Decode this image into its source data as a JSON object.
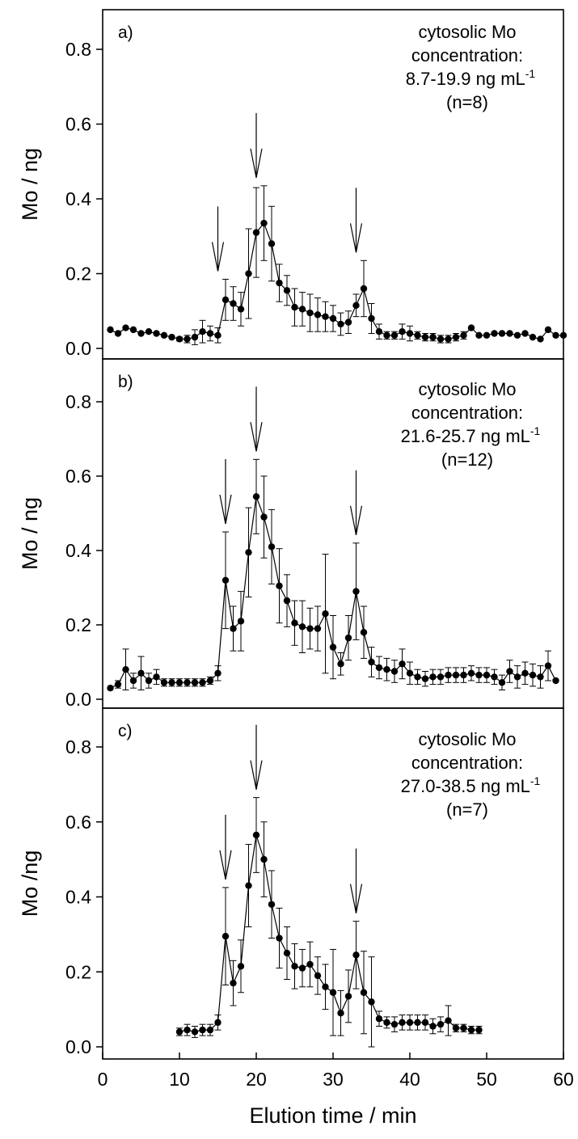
{
  "chart_data": {
    "type": "line",
    "xlabel": "Elution time / min",
    "xlim": [
      0,
      60
    ],
    "xticks": [
      "0",
      "10",
      "20",
      "30",
      "40",
      "50",
      "60"
    ],
    "panels": [
      {
        "label": "a)",
        "ylabel": "Mo / ng",
        "ylim": [
          0,
          0.9
        ],
        "yticks": [
          "0.0",
          "0.2",
          "0.4",
          "0.6",
          "0.8"
        ],
        "annotation": [
          "cytosolic Mo",
          "concentration:",
          "8.7-19.9 ng mL",
          "(n=8)"
        ],
        "annotation_sup": "-1",
        "arrows_x": [
          15,
          20,
          33
        ],
        "points": [
          [
            1,
            0.05,
            0
          ],
          [
            2,
            0.04,
            0
          ],
          [
            3,
            0.055,
            0
          ],
          [
            4,
            0.05,
            0
          ],
          [
            5,
            0.04,
            0
          ],
          [
            6,
            0.045,
            0
          ],
          [
            7,
            0.04,
            0
          ],
          [
            8,
            0.035,
            0
          ],
          [
            9,
            0.03,
            0
          ],
          [
            10,
            0.025,
            0.005
          ],
          [
            11,
            0.025,
            0.01
          ],
          [
            12,
            0.03,
            0.02
          ],
          [
            13,
            0.045,
            0.03
          ],
          [
            14,
            0.04,
            0.02
          ],
          [
            15,
            0.035,
            0.02
          ],
          [
            16,
            0.13,
            0.055
          ],
          [
            17,
            0.12,
            0.045
          ],
          [
            18,
            0.105,
            0.045
          ],
          [
            19,
            0.2,
            0.12
          ],
          [
            20,
            0.31,
            0.12
          ],
          [
            21,
            0.335,
            0.1
          ],
          [
            22,
            0.28,
            0.1
          ],
          [
            23,
            0.175,
            0.05
          ],
          [
            24,
            0.155,
            0.04
          ],
          [
            25,
            0.11,
            0.05
          ],
          [
            26,
            0.105,
            0.045
          ],
          [
            27,
            0.095,
            0.05
          ],
          [
            28,
            0.09,
            0.045
          ],
          [
            29,
            0.085,
            0.04
          ],
          [
            30,
            0.08,
            0.035
          ],
          [
            31,
            0.065,
            0.03
          ],
          [
            32,
            0.07,
            0.03
          ],
          [
            33,
            0.115,
            0.03
          ],
          [
            34,
            0.16,
            0.075
          ],
          [
            35,
            0.08,
            0.04
          ],
          [
            36,
            0.045,
            0.02
          ],
          [
            37,
            0.035,
            0.01
          ],
          [
            38,
            0.035,
            0.01
          ],
          [
            39,
            0.045,
            0.02
          ],
          [
            40,
            0.04,
            0.02
          ],
          [
            41,
            0.035,
            0.01
          ],
          [
            42,
            0.03,
            0.01
          ],
          [
            43,
            0.03,
            0.01
          ],
          [
            44,
            0.025,
            0.01
          ],
          [
            45,
            0.025,
            0.01
          ],
          [
            46,
            0.03,
            0.01
          ],
          [
            47,
            0.035,
            0.01
          ],
          [
            48,
            0.055,
            0
          ],
          [
            49,
            0.035,
            0
          ],
          [
            50,
            0.035,
            0
          ],
          [
            51,
            0.04,
            0
          ],
          [
            52,
            0.04,
            0
          ],
          [
            53,
            0.04,
            0
          ],
          [
            54,
            0.035,
            0
          ],
          [
            55,
            0.04,
            0
          ],
          [
            56,
            0.03,
            0
          ],
          [
            57,
            0.025,
            0
          ],
          [
            58,
            0.05,
            0
          ],
          [
            59,
            0.035,
            0
          ],
          [
            60,
            0.035,
            0
          ]
        ]
      },
      {
        "label": "b)",
        "ylabel": "Mo / ng",
        "ylim": [
          0,
          0.9
        ],
        "yticks": [
          "0.0",
          "0.2",
          "0.4",
          "0.6",
          "0.8"
        ],
        "annotation": [
          "cytosolic Mo",
          "concentration:",
          "21.6-25.7 ng mL",
          "(n=12)"
        ],
        "annotation_sup": "-1",
        "arrows_x": [
          16,
          20,
          33
        ],
        "points": [
          [
            1,
            0.03,
            0
          ],
          [
            2,
            0.04,
            0.01
          ],
          [
            3,
            0.08,
            0.055
          ],
          [
            4,
            0.05,
            0.02
          ],
          [
            5,
            0.07,
            0.045
          ],
          [
            6,
            0.05,
            0.02
          ],
          [
            7,
            0.06,
            0.02
          ],
          [
            8,
            0.045,
            0.01
          ],
          [
            9,
            0.045,
            0.01
          ],
          [
            10,
            0.045,
            0.01
          ],
          [
            11,
            0.045,
            0.01
          ],
          [
            12,
            0.045,
            0.01
          ],
          [
            13,
            0.045,
            0.01
          ],
          [
            14,
            0.05,
            0.01
          ],
          [
            15,
            0.07,
            0.02
          ],
          [
            16,
            0.32,
            0.13
          ],
          [
            17,
            0.19,
            0.06
          ],
          [
            18,
            0.21,
            0.08
          ],
          [
            19,
            0.395,
            0.12
          ],
          [
            20,
            0.545,
            0.1
          ],
          [
            21,
            0.49,
            0.11
          ],
          [
            22,
            0.41,
            0.1
          ],
          [
            23,
            0.305,
            0.1
          ],
          [
            24,
            0.265,
            0.07
          ],
          [
            25,
            0.205,
            0.06
          ],
          [
            26,
            0.195,
            0.07
          ],
          [
            27,
            0.19,
            0.055
          ],
          [
            28,
            0.19,
            0.06
          ],
          [
            29,
            0.23,
            0.16
          ],
          [
            30,
            0.14,
            0.085
          ],
          [
            31,
            0.095,
            0.03
          ],
          [
            32,
            0.165,
            0.06
          ],
          [
            33,
            0.29,
            0.13
          ],
          [
            34,
            0.18,
            0.07
          ],
          [
            35,
            0.1,
            0.04
          ],
          [
            36,
            0.085,
            0.03
          ],
          [
            37,
            0.08,
            0.03
          ],
          [
            38,
            0.075,
            0.03
          ],
          [
            39,
            0.095,
            0.04
          ],
          [
            40,
            0.07,
            0.03
          ],
          [
            41,
            0.06,
            0.02
          ],
          [
            42,
            0.055,
            0.02
          ],
          [
            43,
            0.06,
            0.02
          ],
          [
            44,
            0.06,
            0.02
          ],
          [
            45,
            0.065,
            0.02
          ],
          [
            46,
            0.065,
            0.02
          ],
          [
            47,
            0.065,
            0.02
          ],
          [
            48,
            0.07,
            0.02
          ],
          [
            49,
            0.065,
            0.02
          ],
          [
            50,
            0.065,
            0.02
          ],
          [
            51,
            0.06,
            0.02
          ],
          [
            52,
            0.045,
            0.02
          ],
          [
            53,
            0.075,
            0.03
          ],
          [
            54,
            0.06,
            0.03
          ],
          [
            55,
            0.07,
            0.03
          ],
          [
            56,
            0.065,
            0.03
          ],
          [
            57,
            0.06,
            0.03
          ],
          [
            58,
            0.09,
            0.04
          ],
          [
            59,
            0.05,
            0
          ]
        ]
      },
      {
        "label": "c)",
        "ylabel": "Mo /ng",
        "ylim": [
          0,
          0.9
        ],
        "yticks": [
          "0.0",
          "0.2",
          "0.4",
          "0.6",
          "0.8"
        ],
        "annotation": [
          "cytosolic Mo",
          "concentration:",
          "27.0-38.5 ng mL",
          "(n=7)"
        ],
        "annotation_sup": "-1",
        "arrows_x": [
          16,
          20,
          33
        ],
        "points": [
          [
            10,
            0.04,
            0.01
          ],
          [
            11,
            0.045,
            0.015
          ],
          [
            12,
            0.04,
            0.015
          ],
          [
            13,
            0.045,
            0.015
          ],
          [
            14,
            0.045,
            0.015
          ],
          [
            15,
            0.065,
            0.02
          ],
          [
            16,
            0.295,
            0.13
          ],
          [
            17,
            0.17,
            0.06
          ],
          [
            18,
            0.215,
            0.07
          ],
          [
            19,
            0.43,
            0.11
          ],
          [
            20,
            0.565,
            0.1
          ],
          [
            21,
            0.5,
            0.1
          ],
          [
            22,
            0.38,
            0.09
          ],
          [
            23,
            0.29,
            0.08
          ],
          [
            24,
            0.25,
            0.07
          ],
          [
            25,
            0.215,
            0.06
          ],
          [
            26,
            0.21,
            0.05
          ],
          [
            27,
            0.22,
            0.06
          ],
          [
            28,
            0.19,
            0.05
          ],
          [
            29,
            0.16,
            0.06
          ],
          [
            30,
            0.145,
            0.115
          ],
          [
            31,
            0.09,
            0.06
          ],
          [
            32,
            0.135,
            0.07
          ],
          [
            33,
            0.245,
            0.09
          ],
          [
            34,
            0.145,
            0.11
          ],
          [
            35,
            0.12,
            0.12
          ],
          [
            36,
            0.075,
            0.02
          ],
          [
            37,
            0.065,
            0.015
          ],
          [
            38,
            0.06,
            0.02
          ],
          [
            39,
            0.065,
            0.02
          ],
          [
            40,
            0.065,
            0.02
          ],
          [
            41,
            0.065,
            0.02
          ],
          [
            42,
            0.065,
            0.02
          ],
          [
            43,
            0.055,
            0.02
          ],
          [
            44,
            0.06,
            0.02
          ],
          [
            45,
            0.07,
            0.04
          ],
          [
            46,
            0.05,
            0.01
          ],
          [
            47,
            0.05,
            0.01
          ],
          [
            48,
            0.045,
            0.01
          ],
          [
            49,
            0.045,
            0.01
          ]
        ]
      }
    ]
  }
}
